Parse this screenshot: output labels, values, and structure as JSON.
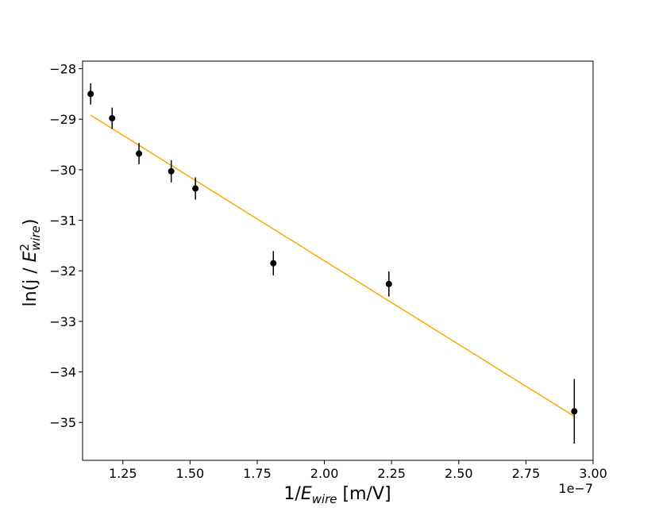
{
  "chart_data": {
    "type": "scatter",
    "title": "",
    "xlabel": "1/E_wire [m/V]",
    "ylabel": "ln(j / E²_wire)",
    "x_offset_label": "1e−7",
    "xlim": [
      1.1e-07,
      3e-07
    ],
    "ylim": [
      -35.75,
      -27.85
    ],
    "x_ticks": [
      1.25e-07,
      1.5e-07,
      1.75e-07,
      2e-07,
      2.25e-07,
      2.5e-07,
      2.75e-07,
      3e-07
    ],
    "x_tick_labels": [
      "1.25",
      "1.50",
      "1.75",
      "2.00",
      "2.25",
      "2.50",
      "2.75",
      "3.00"
    ],
    "y_ticks": [
      -35,
      -34,
      -33,
      -32,
      -31,
      -30,
      -29,
      -28
    ],
    "y_tick_labels": [
      "−35",
      "−34",
      "−33",
      "−32",
      "−31",
      "−30",
      "−29",
      "−28"
    ],
    "grid": false,
    "series": [
      {
        "kind": "errorbar",
        "color": "#000000",
        "x": [
          1.13e-07,
          1.21e-07,
          1.31e-07,
          1.43e-07,
          1.52e-07,
          1.81e-07,
          2.24e-07,
          2.93e-07
        ],
        "y": [
          -28.5,
          -28.98,
          -29.68,
          -30.03,
          -30.37,
          -31.85,
          -32.26,
          -34.78
        ],
        "yerr": [
          0.21,
          0.21,
          0.21,
          0.22,
          0.22,
          0.24,
          0.25,
          0.64
        ]
      },
      {
        "kind": "fit-line",
        "color": "#ffa500",
        "x": [
          1.13e-07,
          2.93e-07
        ],
        "y": [
          -28.92,
          -34.88
        ]
      }
    ]
  }
}
